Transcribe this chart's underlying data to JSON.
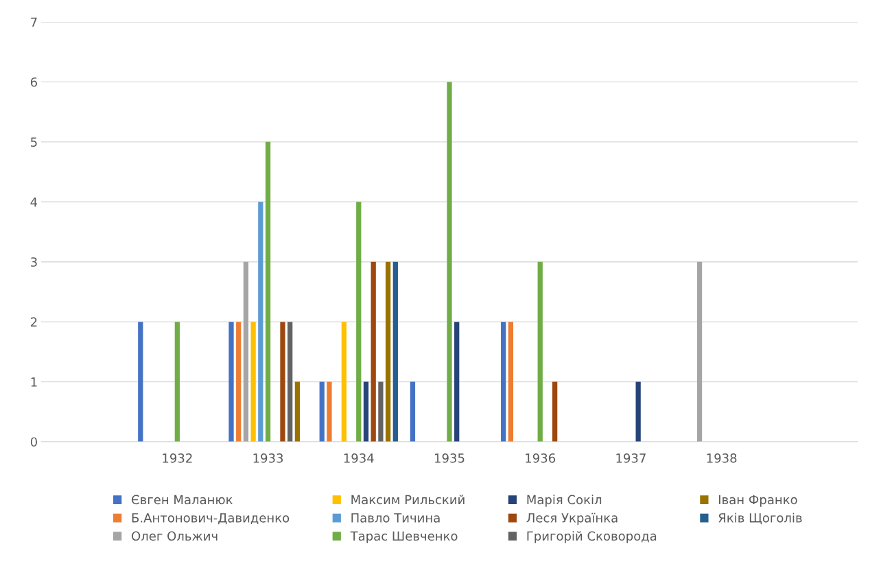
{
  "chart_data": {
    "type": "bar",
    "categories": [
      null,
      "1932",
      "1933",
      "1934",
      "1935",
      "1936",
      "1937",
      "1938",
      null
    ],
    "series": [
      {
        "name": "Євген Маланюк",
        "color": "#4472c4",
        "values": [
          null,
          2,
          2,
          1,
          1,
          2,
          null,
          null,
          null
        ]
      },
      {
        "name": "Б.Антонович-Давиденко",
        "color": "#ed7d31",
        "values": [
          null,
          null,
          2,
          1,
          null,
          2,
          null,
          null,
          null
        ]
      },
      {
        "name": "Олег Ольжич",
        "color": "#a5a5a5",
        "values": [
          null,
          null,
          3,
          null,
          null,
          null,
          null,
          3,
          null
        ]
      },
      {
        "name": "Максим Рильский",
        "color": "#ffc000",
        "values": [
          null,
          null,
          2,
          2,
          null,
          null,
          null,
          null,
          null
        ]
      },
      {
        "name": "Павло Тичина",
        "color": "#5b9bd5",
        "values": [
          null,
          null,
          4,
          null,
          null,
          null,
          null,
          null,
          null
        ]
      },
      {
        "name": "Тарас Шевченко",
        "color": "#70ad47",
        "values": [
          null,
          2,
          5,
          4,
          6,
          3,
          null,
          null,
          null
        ]
      },
      {
        "name": "Марія Сокіл",
        "color": "#264478",
        "values": [
          null,
          null,
          null,
          1,
          2,
          null,
          1,
          null,
          null
        ]
      },
      {
        "name": "Леся Українка",
        "color": "#9e480e",
        "values": [
          null,
          null,
          2,
          3,
          null,
          1,
          null,
          null,
          null
        ]
      },
      {
        "name": "Григорій Сковорода",
        "color": "#636363",
        "values": [
          null,
          null,
          2,
          1,
          null,
          null,
          null,
          null,
          null
        ]
      },
      {
        "name": "Іван Франко",
        "color": "#997300",
        "values": [
          null,
          null,
          1,
          3,
          null,
          null,
          null,
          null,
          null
        ]
      },
      {
        "name": "Яків Щоголів",
        "color": "#255e91",
        "values": [
          null,
          null,
          null,
          3,
          null,
          null,
          null,
          null,
          null
        ]
      }
    ],
    "ylim": [
      0,
      7
    ],
    "yticks": [
      0,
      1,
      2,
      3,
      4,
      5,
      6,
      7
    ],
    "grid": "y",
    "legend": "bottom"
  }
}
